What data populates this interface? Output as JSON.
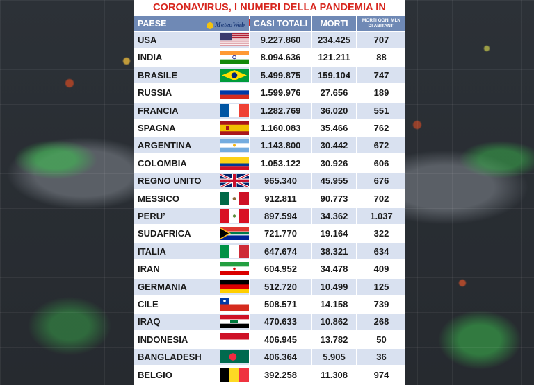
{
  "title": "CORONAVIRUS, I NUMERI DELLA PANDEMIA IN DIRETTA",
  "logo": "MeteoWeb",
  "headers": {
    "country": "PAESE",
    "cases": "CASI TOTALI",
    "deaths": "MORTI",
    "rate_line1": "MORTI OGNI MLN",
    "rate_line2": "DI ABITANTI"
  },
  "rows": [
    {
      "country": "USA",
      "cases": "9.227.860",
      "deaths": "234.425",
      "rate": "707",
      "flag": "us-flag-icon"
    },
    {
      "country": "INDIA",
      "cases": "8.094.636",
      "deaths": "121.211",
      "rate": "88",
      "flag": "india-flag-icon"
    },
    {
      "country": "BRASILE",
      "cases": "5.499.875",
      "deaths": "159.104",
      "rate": "747",
      "flag": "brazil-flag-icon"
    },
    {
      "country": "RUSSIA",
      "cases": "1.599.976",
      "deaths": "27.656",
      "rate": "189",
      "flag": "russia-flag-icon"
    },
    {
      "country": "FRANCIA",
      "cases": "1.282.769",
      "deaths": "36.020",
      "rate": "551",
      "flag": "france-flag-icon"
    },
    {
      "country": "SPAGNA",
      "cases": "1.160.083",
      "deaths": "35.466",
      "rate": "762",
      "flag": "spain-flag-icon"
    },
    {
      "country": "ARGENTINA",
      "cases": "1.143.800",
      "deaths": "30.442",
      "rate": "672",
      "flag": "argentina-flag-icon"
    },
    {
      "country": "COLOMBIA",
      "cases": "1.053.122",
      "deaths": "30.926",
      "rate": "606",
      "flag": "colombia-flag-icon"
    },
    {
      "country": "REGNO UNITO",
      "cases": "965.340",
      "deaths": "45.955",
      "rate": "676",
      "flag": "uk-flag-icon"
    },
    {
      "country": "MESSICO",
      "cases": "912.811",
      "deaths": "90.773",
      "rate": "702",
      "flag": "mexico-flag-icon"
    },
    {
      "country": "PERU’",
      "cases": "897.594",
      "deaths": "34.362",
      "rate": "1.037",
      "flag": "peru-flag-icon"
    },
    {
      "country": "SUDAFRICA",
      "cases": "721.770",
      "deaths": "19.164",
      "rate": "322",
      "flag": "south-africa-flag-icon"
    },
    {
      "country": "ITALIA",
      "cases": "647.674",
      "deaths": "38.321",
      "rate": "634",
      "flag": "italy-flag-icon"
    },
    {
      "country": "IRAN",
      "cases": "604.952",
      "deaths": "34.478",
      "rate": "409",
      "flag": "iran-flag-icon"
    },
    {
      "country": "GERMANIA",
      "cases": "512.720",
      "deaths": "10.499",
      "rate": "125",
      "flag": "germany-flag-icon"
    },
    {
      "country": "CILE",
      "cases": "508.571",
      "deaths": "14.158",
      "rate": "739",
      "flag": "chile-flag-icon"
    },
    {
      "country": "IRAQ",
      "cases": "470.633",
      "deaths": "10.862",
      "rate": "268",
      "flag": "iraq-flag-icon"
    },
    {
      "country": "INDONESIA",
      "cases": "406.945",
      "deaths": "13.782",
      "rate": "50",
      "flag": "indonesia-flag-icon"
    },
    {
      "country": "BANGLADESH",
      "cases": "406.364",
      "deaths": "5.905",
      "rate": "36",
      "flag": "bangladesh-flag-icon"
    },
    {
      "country": "BELGIO",
      "cases": "392.258",
      "deaths": "11.308",
      "rate": "974",
      "flag": "belgium-flag-icon"
    }
  ]
}
